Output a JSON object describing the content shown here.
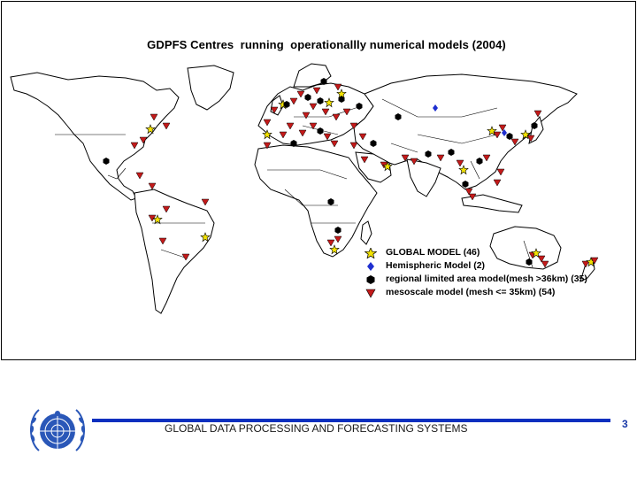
{
  "title": "GDPFS Centres  running  operationallly numerical models (2004)",
  "legend": {
    "items": [
      {
        "label": "GLOBAL MODEL (46)",
        "symbol": "star-yellow",
        "color": "#f2e200"
      },
      {
        "label": "Hemispheric Model (2)",
        "symbol": "diamond-blue",
        "color": "#1f2fd0"
      },
      {
        "label": "regional limited area model(mesh >36km) (35)",
        "symbol": "hexagon-black",
        "color": "#000000"
      },
      {
        "label": "mesoscale model (mesh <= 35km) (54)",
        "symbol": "triangle-red",
        "color": "#c41a1a"
      }
    ]
  },
  "footer": {
    "text": "GLOBAL DATA PROCESSING AND FORECASTING SYSTEMS",
    "page_number": "3",
    "line_color": "#0b2fbf"
  },
  "logo": {
    "icon": "wmo-emblem-icon",
    "color": "#2a57b8"
  }
}
